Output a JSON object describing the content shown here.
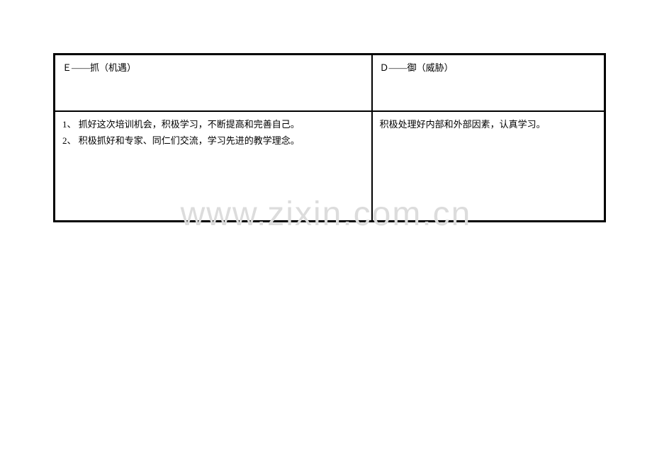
{
  "table": {
    "header": {
      "left": "Ｅ——抓（机遇）",
      "right": "Ｄ——御（威胁）"
    },
    "content": {
      "left_items": [
        "1、 抓好这次培训机会，积极学习，不断提高和完善自己。",
        "2、 积极抓好和专家、同仁们交流，学习先进的教学理念。"
      ],
      "right": "积极处理好内部和外部因素，认真学习。"
    },
    "border_color": "#000000",
    "text_color": "#000000",
    "font_size": 13,
    "background_color": "#ffffff"
  },
  "watermark": {
    "text": "www.zixin.com.cn",
    "color": "#dcdcdc",
    "font_size": 48
  }
}
